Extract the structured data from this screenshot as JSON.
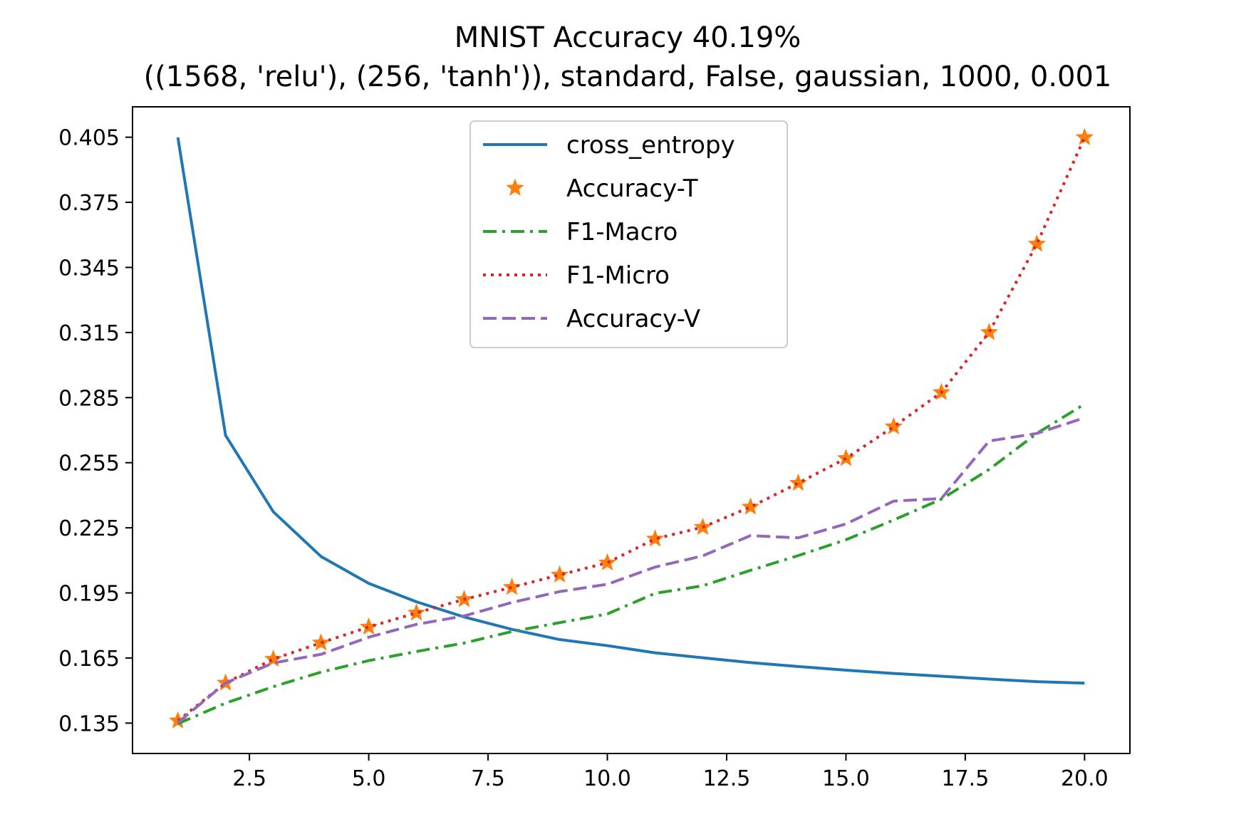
{
  "chart_data": {
    "type": "line",
    "title": "MNIST Accuracy 40.19%",
    "subtitle": "((1568, 'relu'), (256, 'tanh')), standard, False, gaussian, 1000, 0.001",
    "xlabel": "",
    "ylabel": "",
    "xlim": [
      0.05,
      20.95
    ],
    "ylim": [
      0.121,
      0.419
    ],
    "x_ticks": [
      2.5,
      5.0,
      7.5,
      10.0,
      12.5,
      15.0,
      17.5,
      20.0
    ],
    "x_tick_labels": [
      "2.5",
      "5.0",
      "7.5",
      "10.0",
      "12.5",
      "15.0",
      "17.5",
      "20.0"
    ],
    "y_ticks": [
      0.135,
      0.165,
      0.195,
      0.225,
      0.255,
      0.285,
      0.315,
      0.345,
      0.375,
      0.405
    ],
    "y_tick_labels": [
      "0.135",
      "0.165",
      "0.195",
      "0.225",
      "0.255",
      "0.285",
      "0.315",
      "0.345",
      "0.375",
      "0.405"
    ],
    "grid": false,
    "legend_position": "top-center",
    "x": [
      1,
      2,
      3,
      4,
      5,
      6,
      7,
      8,
      9,
      10,
      11,
      12,
      13,
      14,
      15,
      16,
      17,
      18,
      19,
      20
    ],
    "series": [
      {
        "name": "cross_entropy",
        "color": "#1f77b4",
        "style": "solid",
        "values": [
          0.4049,
          0.2676,
          0.2324,
          0.2118,
          0.1994,
          0.1909,
          0.1839,
          0.1782,
          0.1735,
          0.1707,
          0.1674,
          0.1651,
          0.1629,
          0.1611,
          0.1594,
          0.1579,
          0.1566,
          0.1553,
          0.1541,
          0.1534
        ]
      },
      {
        "name": "Accuracy-T",
        "color": "#ff7f0e",
        "style": "star-markers",
        "values": [
          0.1361,
          0.1535,
          0.1645,
          0.172,
          0.1793,
          0.1858,
          0.192,
          0.1976,
          0.2033,
          0.2089,
          0.2199,
          0.2253,
          0.2346,
          0.2456,
          0.257,
          0.2716,
          0.2874,
          0.3151,
          0.3558,
          0.4049
        ]
      },
      {
        "name": "F1-Macro",
        "color": "#2ca02c",
        "style": "dashdot",
        "values": [
          0.1347,
          0.1442,
          0.1518,
          0.1585,
          0.1638,
          0.168,
          0.1719,
          0.1772,
          0.1813,
          0.1853,
          0.1948,
          0.1983,
          0.2054,
          0.2122,
          0.2195,
          0.2286,
          0.2382,
          0.2519,
          0.2685,
          0.282
        ]
      },
      {
        "name": "F1-Micro",
        "color": "#d62728",
        "style": "dotted",
        "values": [
          0.1361,
          0.1535,
          0.1645,
          0.172,
          0.1793,
          0.1858,
          0.192,
          0.1976,
          0.2033,
          0.2089,
          0.2199,
          0.2253,
          0.2346,
          0.2456,
          0.257,
          0.2716,
          0.2874,
          0.3151,
          0.3558,
          0.4049
        ]
      },
      {
        "name": "Accuracy-V",
        "color": "#9467bd",
        "style": "dashed",
        "values": [
          0.1352,
          0.1535,
          0.1627,
          0.1667,
          0.1746,
          0.1805,
          0.1844,
          0.1906,
          0.1956,
          0.199,
          0.2069,
          0.2121,
          0.2214,
          0.2204,
          0.2268,
          0.2373,
          0.2385,
          0.265,
          0.2685,
          0.2757
        ]
      }
    ]
  }
}
